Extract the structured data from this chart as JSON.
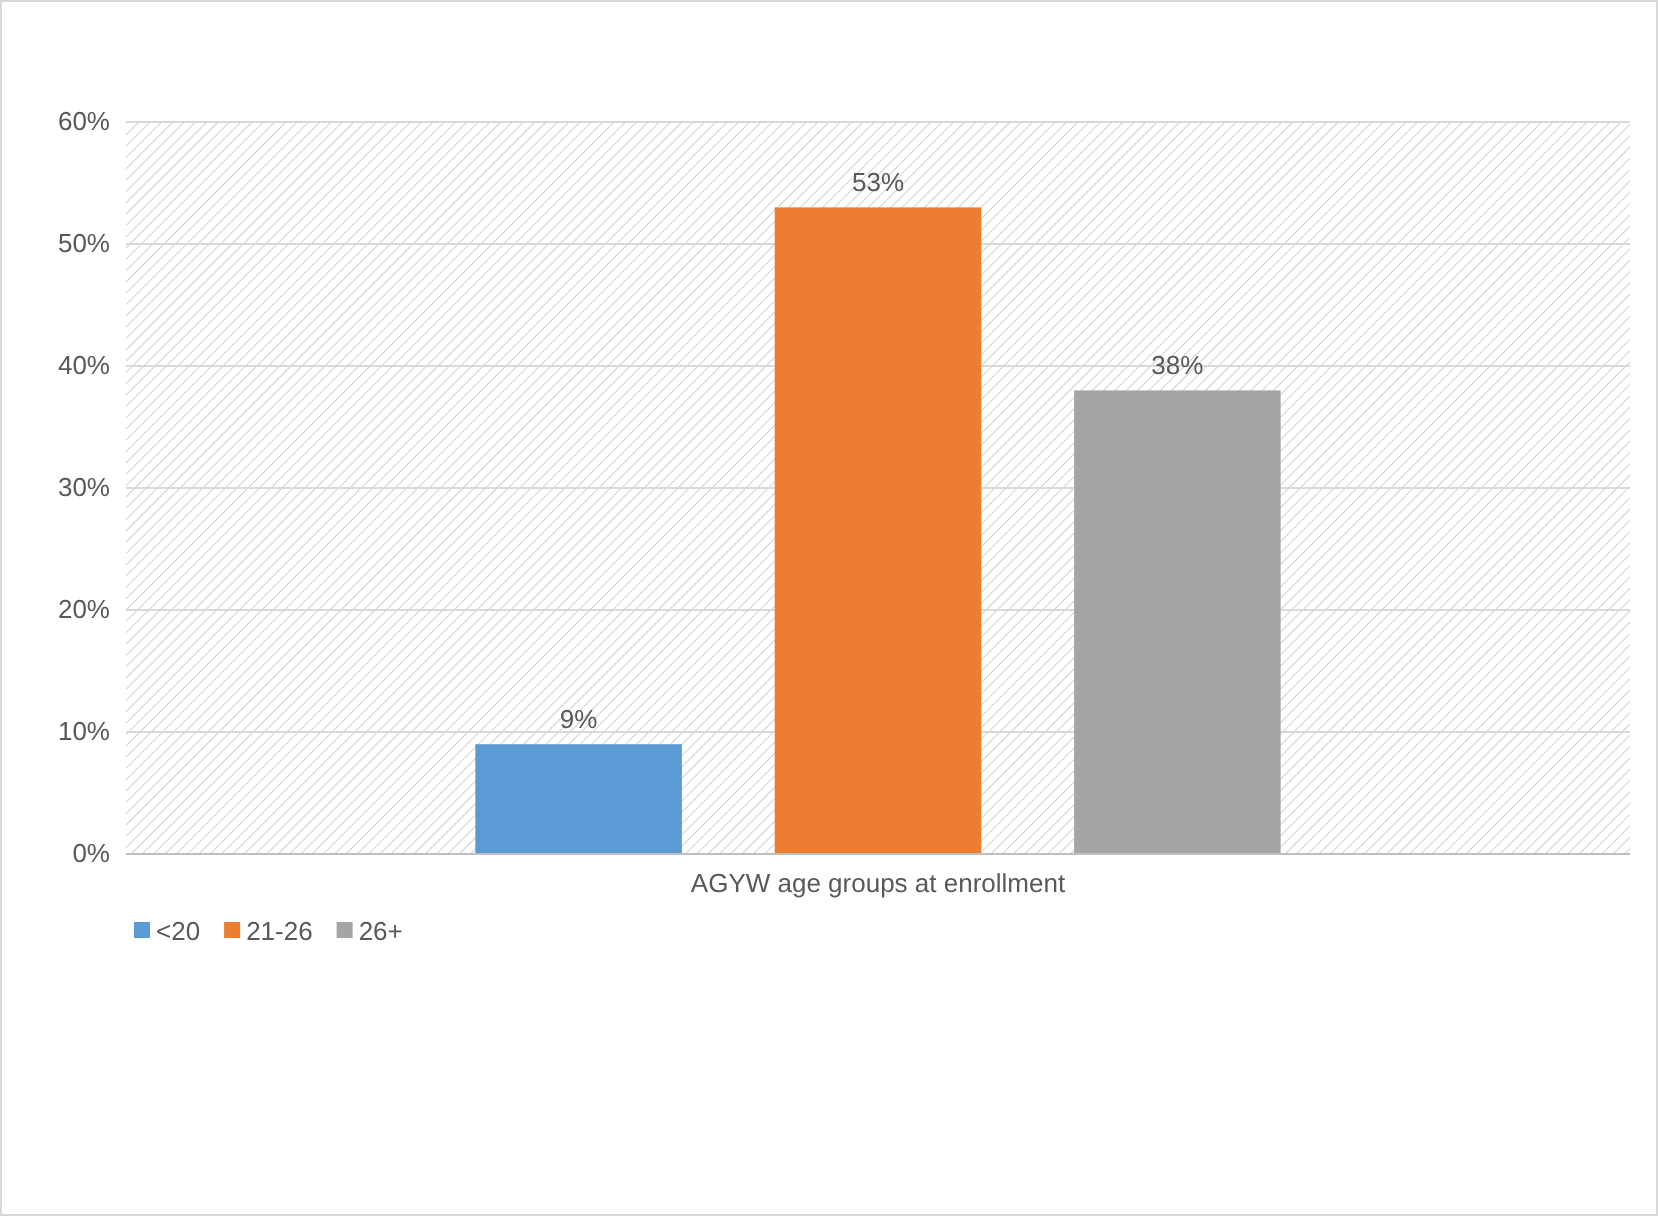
{
  "chart_data": {
    "type": "bar",
    "categories": [
      "AGYW age groups at enrollment"
    ],
    "series": [
      {
        "name": "<20",
        "color": "#5b9bd5",
        "values": [
          9
        ]
      },
      {
        "name": "21-26",
        "color": "#ed7d31",
        "values": [
          53
        ]
      },
      {
        "name": "26+",
        "color": "#a5a5a5",
        "values": [
          38
        ]
      }
    ],
    "ylim": [
      0,
      60
    ],
    "yticks": [
      {
        "value": 0,
        "label": "0%"
      },
      {
        "value": 10,
        "label": "10%"
      },
      {
        "value": 20,
        "label": "20%"
      },
      {
        "value": 30,
        "label": "30%"
      },
      {
        "value": 40,
        "label": "40%"
      },
      {
        "value": 50,
        "label": "50%"
      },
      {
        "value": 60,
        "label": "60%"
      }
    ],
    "value_labels": [
      "9%",
      "53%",
      "38%"
    ],
    "grid": "y",
    "legend": "bottom left"
  }
}
